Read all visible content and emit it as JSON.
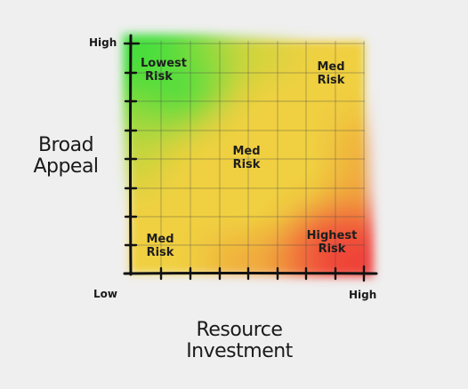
{
  "y_axis": {
    "title_line1": "Broad",
    "title_line2": "Appeal",
    "high_label": "High"
  },
  "x_axis": {
    "title_line1": "Resource",
    "title_line2": "Investment",
    "low_label": "Low",
    "high_label": "High"
  },
  "quadrants": {
    "top_left": {
      "line1": "Lowest",
      "line2": "Risk"
    },
    "top_right": {
      "line1": "Med",
      "line2": "Risk"
    },
    "center": {
      "line1": "Med",
      "line2": "Risk"
    },
    "bottom_left": {
      "line1": "Med",
      "line2": "Risk"
    },
    "bottom_right": {
      "line1": "Highest",
      "line2": "Risk"
    }
  },
  "colors": {
    "low_risk": "#3de03d",
    "medium_risk": "#f0d040",
    "high_risk": "#f03a3a",
    "axis": "#111111",
    "grid": "#4a4a4a",
    "background": "#efefef"
  }
}
